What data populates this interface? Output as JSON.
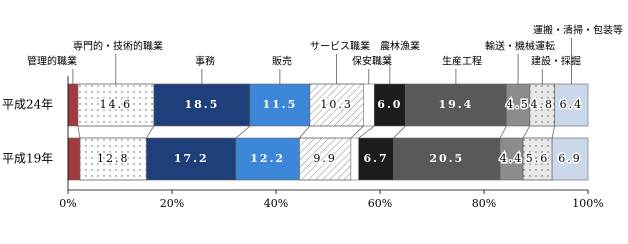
{
  "chart_data": {
    "type": "stacked-bar-horizontal",
    "categories": [
      "平成24年",
      "平成19年"
    ],
    "series": [
      {
        "name": "管理的職業",
        "color": "#a33a3f",
        "values": [
          1.9,
          2.3
        ],
        "value_labels": [
          null,
          null
        ]
      },
      {
        "name": "専門的・技術的職業",
        "color": "#ffffff",
        "pattern": "dots",
        "values": [
          14.6,
          12.8
        ],
        "value_labels": [
          "14.6",
          "12.8"
        ]
      },
      {
        "name": "事務",
        "color": "#1f3f7a",
        "values": [
          18.5,
          17.2
        ],
        "value_labels": [
          "18.5",
          "17.2"
        ]
      },
      {
        "name": "販売",
        "color": "#3c87d8",
        "values": [
          11.5,
          12.2
        ],
        "value_labels": [
          "11.5",
          "12.2"
        ]
      },
      {
        "name": "サービス職業",
        "color": "#ffffff",
        "pattern": "hatch",
        "values": [
          10.3,
          9.9
        ],
        "value_labels": [
          "10.3",
          "9.9"
        ]
      },
      {
        "name": "保安職業",
        "color": "#ffffff",
        "values": [
          2.1,
          1.5
        ],
        "value_labels": [
          null,
          null
        ]
      },
      {
        "name": "農林漁業",
        "color": "#1c1c1c",
        "values": [
          6.0,
          6.7
        ],
        "value_labels": [
          "6.0",
          "6.7"
        ]
      },
      {
        "name": "生産工程",
        "color": "#595959",
        "values": [
          19.4,
          20.5
        ],
        "value_labels": [
          "19.4",
          "20.5"
        ]
      },
      {
        "name": "輸送・機械運転",
        "color": "#8c8c8c",
        "values": [
          4.5,
          4.4
        ],
        "value_labels": [
          "4.5",
          "4.4"
        ]
      },
      {
        "name": "建設・採掘",
        "color": "#e8e8e8",
        "pattern": "dots",
        "values": [
          4.8,
          5.6
        ],
        "value_labels": [
          "4.8",
          "5.6"
        ]
      },
      {
        "name": "運搬・清掃・包装等",
        "color": "#cbd8ec",
        "values": [
          6.4,
          6.9
        ],
        "value_labels": [
          "6.4",
          "6.9"
        ]
      }
    ],
    "xlim": [
      0,
      100
    ],
    "xticks": [
      {
        "value": 0,
        "label": "0%"
      },
      {
        "value": 20,
        "label": "20%"
      },
      {
        "value": 40,
        "label": "40%"
      },
      {
        "value": 60,
        "label": "60%"
      },
      {
        "value": 80,
        "label": "80%"
      },
      {
        "value": 100,
        "label": "100%"
      }
    ]
  }
}
